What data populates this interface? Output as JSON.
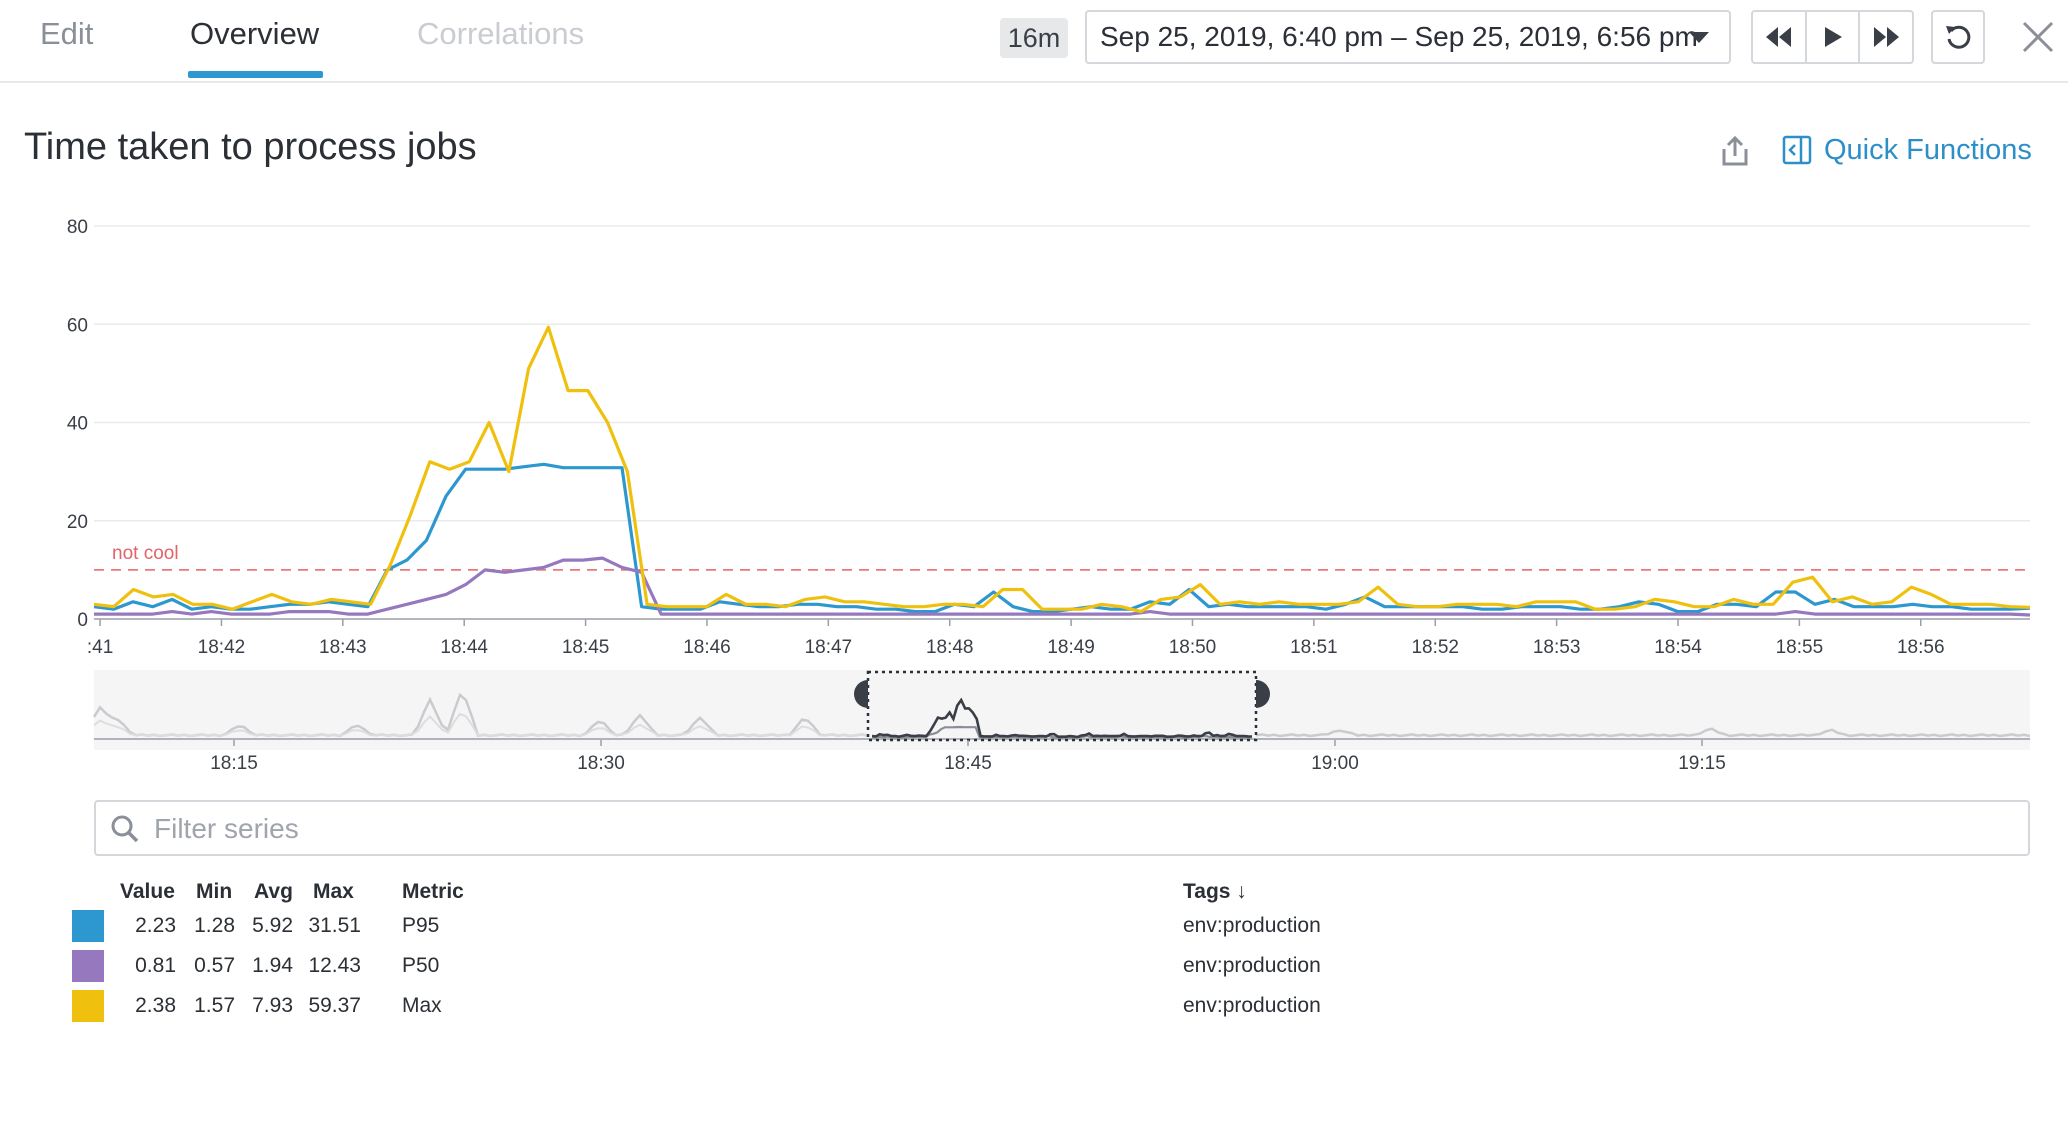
{
  "tabs": [
    {
      "label": "Edit",
      "state": "normal"
    },
    {
      "label": "Overview",
      "state": "active"
    },
    {
      "label": "Correlations",
      "state": "disabled"
    }
  ],
  "toolbar": {
    "duration_badge": "16m",
    "time_range": "Sep 25, 2019, 6:40 pm – Sep 25, 2019, 6:56 pm",
    "buttons": [
      "rewind-icon",
      "play-icon",
      "fast-forward-icon",
      "reset-icon",
      "close-icon"
    ]
  },
  "graph": {
    "title": "Time taken to process jobs",
    "quick_functions_label": "Quick Functions",
    "accent_color": "#2d8fc8"
  },
  "chart_data": {
    "type": "line",
    "ylim": [
      0,
      80
    ],
    "yticks": [
      0,
      20,
      40,
      60,
      80
    ],
    "x_tick_labels": [
      ":41",
      "18:42",
      "18:43",
      "18:44",
      "18:45",
      "18:46",
      "18:47",
      "18:48",
      "18:49",
      "18:50",
      "18:51",
      "18:52",
      "18:53",
      "18:54",
      "18:55",
      "18:56"
    ],
    "x_start_minute": 40.95,
    "x_end_minute": 56.9,
    "grid": true,
    "marker": {
      "label": "not cool",
      "value": 10,
      "color": "#e8787c"
    },
    "series": [
      {
        "name": "P95",
        "color": "#2d97d0",
        "values": [
          2.5,
          2,
          3.5,
          2.5,
          4,
          2,
          2.5,
          2,
          2,
          2.5,
          3,
          3,
          3.5,
          3,
          2.5,
          10,
          12,
          16,
          25,
          30.5,
          30.5,
          30.5,
          31,
          31.5,
          30.8,
          30.8,
          30.8,
          30.8,
          2.5,
          2,
          2,
          2,
          3.5,
          3,
          2.5,
          2.5,
          3,
          3,
          2.5,
          2.5,
          2,
          2,
          1.5,
          1.5,
          3,
          2.5,
          5.5,
          2.5,
          1.5,
          1.5,
          2,
          2.5,
          2,
          2,
          3.5,
          3,
          6,
          2.5,
          3,
          2.5,
          2.5,
          2.5,
          2.5,
          2,
          3,
          4.5,
          2.5,
          2.5,
          2.5,
          2.5,
          2.5,
          2,
          2,
          2.5,
          2.5,
          2.5,
          2,
          2,
          2.5,
          3.5,
          3,
          1.5,
          1.5,
          3,
          3,
          2.5,
          5.5,
          5.5,
          3,
          4,
          2.5,
          2.5,
          2.5,
          3,
          2.5,
          2.5,
          2,
          2,
          2,
          2.2
        ]
      },
      {
        "name": "P50",
        "color": "#9678bf",
        "values": [
          1,
          1,
          1,
          1,
          1.5,
          1,
          1.5,
          1,
          1,
          1,
          1.5,
          1.5,
          1.5,
          1,
          1,
          2,
          3,
          4,
          5,
          7,
          10,
          9.5,
          10,
          10.5,
          12,
          12,
          12.4,
          10.5,
          9.5,
          1,
          1,
          1,
          1,
          1,
          1,
          1,
          1,
          1,
          1,
          1,
          1,
          1,
          1,
          1,
          1,
          1,
          1,
          1,
          1,
          1,
          1,
          1,
          1,
          1,
          1.5,
          1,
          1,
          1,
          1,
          1,
          1,
          1,
          1,
          1,
          1,
          1,
          1,
          1,
          1,
          1,
          1,
          1,
          1,
          1,
          1,
          1,
          1,
          1,
          1,
          1,
          1,
          1,
          1,
          1,
          1,
          1,
          1,
          1.5,
          1,
          1,
          1,
          1,
          1,
          1,
          1,
          1,
          1,
          1,
          1,
          0.81
        ]
      },
      {
        "name": "Max",
        "color": "#efc10e",
        "values": [
          3,
          2.5,
          6,
          4.5,
          5,
          3,
          3,
          2,
          3.5,
          5,
          3.5,
          3,
          4,
          3.5,
          3,
          11,
          21,
          32,
          30.5,
          32,
          40,
          30,
          51,
          59.4,
          46.5,
          46.5,
          40,
          30,
          3,
          2.5,
          2.5,
          2.5,
          5,
          3,
          3,
          2.5,
          4,
          4.5,
          3.5,
          3.5,
          3,
          2.5,
          2.5,
          3,
          3,
          2.5,
          6,
          6,
          2,
          2,
          2,
          3,
          2.5,
          1.5,
          4,
          4.5,
          7,
          3,
          3.5,
          3,
          3.5,
          3,
          3,
          3,
          3.5,
          6.5,
          3,
          2.5,
          2.5,
          3,
          3,
          3,
          2.5,
          3.5,
          3.5,
          3.5,
          2,
          2,
          2.5,
          4,
          3.5,
          2.5,
          2.5,
          4,
          3,
          3,
          7.5,
          8.5,
          3.5,
          4.5,
          3,
          3.5,
          6.5,
          5,
          3,
          3,
          3,
          2.5,
          2.38
        ]
      }
    ]
  },
  "navigator": {
    "tick_labels": [
      "18:15",
      "18:30",
      "18:45",
      "19:00",
      "19:15"
    ],
    "window_start_label": "18:40",
    "window_end_label": "18:56"
  },
  "filter": {
    "placeholder": "Filter series"
  },
  "legend": {
    "headers": {
      "value": "Value",
      "min": "Min",
      "avg": "Avg",
      "max": "Max",
      "metric": "Metric",
      "tags": "Tags ↓"
    },
    "rows": [
      {
        "color": "#2d97d0",
        "value": "2.23",
        "min": "1.28",
        "avg": "5.92",
        "max": "31.51",
        "metric": "P95",
        "tags": "env:production"
      },
      {
        "color": "#9678bf",
        "value": "0.81",
        "min": "0.57",
        "avg": "1.94",
        "max": "12.43",
        "metric": "P50",
        "tags": "env:production"
      },
      {
        "color": "#efc10e",
        "value": "2.38",
        "min": "1.57",
        "avg": "7.93",
        "max": "59.37",
        "metric": "Max",
        "tags": "env:production"
      }
    ]
  }
}
